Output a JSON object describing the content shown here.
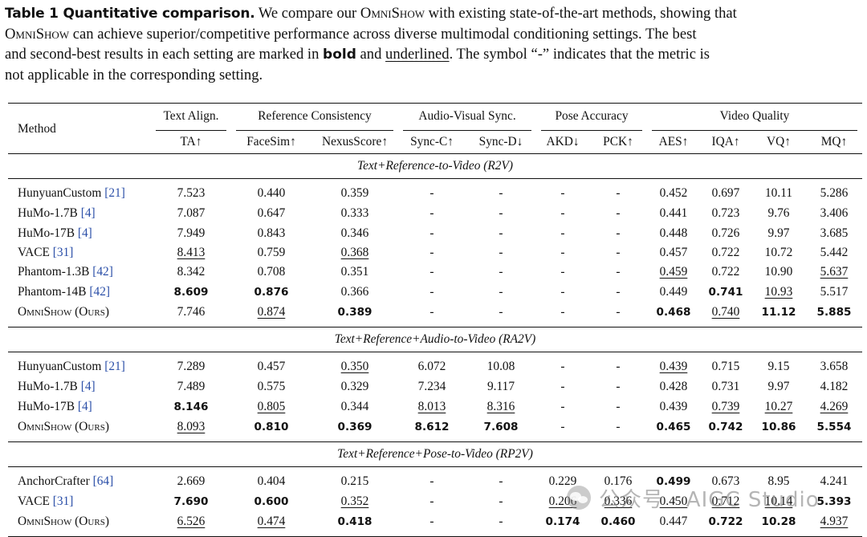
{
  "caption": {
    "label": "Table 1  Quantitative comparison.",
    "line1_a": " We compare our ",
    "model_name": "OmniShow",
    "line1_b": " with existing state-of-the-art methods, showing that",
    "line2_b": " can achieve superior/competitive performance across diverse multimodal conditioning settings. The best",
    "line3_a": "and second-best results in each setting are marked in ",
    "bold_word": "bold",
    "line3_b": " and ",
    "underline_word": "underlined",
    "line3_c": ". The symbol “-” indicates that the metric is",
    "line4": "not applicable in the corresponding setting."
  },
  "table": {
    "method_header": "Method",
    "groups": [
      {
        "label": "Text Align."
      },
      {
        "label": "Reference Consistency"
      },
      {
        "label": "Audio-Visual Sync."
      },
      {
        "label": "Pose Accuracy"
      },
      {
        "label": "Video Quality"
      }
    ],
    "metrics": [
      "TA↑",
      "FaceSim↑",
      "NexusScore↑",
      "Sync-C↑",
      "Sync-D↓",
      "AKD↓",
      "PCK↑",
      "AES↑",
      "IQA↑",
      "VQ↑",
      "MQ↑"
    ],
    "sections": [
      {
        "title": "Text+Reference-to-Video (R2V)",
        "rows": [
          {
            "method": "HunyuanCustom",
            "cite": "[21]",
            "values": [
              "7.523",
              "0.440",
              "0.359",
              "-",
              "-",
              "-",
              "-",
              "0.452",
              "0.697",
              "10.11",
              "5.286"
            ],
            "bold": [],
            "underline": []
          },
          {
            "method": "HuMo-1.7B",
            "cite": "[4]",
            "values": [
              "7.087",
              "0.647",
              "0.333",
              "-",
              "-",
              "-",
              "-",
              "0.441",
              "0.723",
              "9.76",
              "3.406"
            ],
            "bold": [],
            "underline": []
          },
          {
            "method": "HuMo-17B",
            "cite": "[4]",
            "values": [
              "7.949",
              "0.843",
              "0.346",
              "-",
              "-",
              "-",
              "-",
              "0.448",
              "0.726",
              "9.97",
              "3.685"
            ],
            "bold": [],
            "underline": []
          },
          {
            "method": "VACE",
            "cite": "[31]",
            "values": [
              "8.413",
              "0.759",
              "0.368",
              "-",
              "-",
              "-",
              "-",
              "0.457",
              "0.722",
              "10.72",
              "5.442"
            ],
            "bold": [],
            "underline": [
              0,
              2
            ]
          },
          {
            "method": "Phantom-1.3B",
            "cite": "[42]",
            "values": [
              "8.342",
              "0.708",
              "0.351",
              "-",
              "-",
              "-",
              "-",
              "0.459",
              "0.722",
              "10.90",
              "5.637"
            ],
            "bold": [],
            "underline": [
              7,
              10
            ]
          },
          {
            "method": "Phantom-14B",
            "cite": "[42]",
            "values": [
              "8.609",
              "0.876",
              "0.366",
              "-",
              "-",
              "-",
              "-",
              "0.449",
              "0.741",
              "10.93",
              "5.517"
            ],
            "bold": [
              0,
              1,
              8
            ],
            "underline": [
              9
            ]
          },
          {
            "method": "OmniShow (Ours)",
            "cite": "",
            "values": [
              "7.746",
              "0.874",
              "0.389",
              "-",
              "-",
              "-",
              "-",
              "0.468",
              "0.740",
              "11.12",
              "5.885"
            ],
            "bold": [
              2,
              7,
              9,
              10
            ],
            "underline": [
              1,
              8
            ]
          }
        ]
      },
      {
        "title": "Text+Reference+Audio-to-Video (RA2V)",
        "rows": [
          {
            "method": "HunyuanCustom",
            "cite": "[21]",
            "values": [
              "7.289",
              "0.457",
              "0.350",
              "6.072",
              "10.08",
              "-",
              "-",
              "0.439",
              "0.715",
              "9.15",
              "3.658"
            ],
            "bold": [],
            "underline": [
              2,
              7
            ]
          },
          {
            "method": "HuMo-1.7B",
            "cite": "[4]",
            "values": [
              "7.489",
              "0.575",
              "0.329",
              "7.234",
              "9.117",
              "-",
              "-",
              "0.428",
              "0.731",
              "9.97",
              "4.182"
            ],
            "bold": [],
            "underline": []
          },
          {
            "method": "HuMo-17B",
            "cite": "[4]",
            "values": [
              "8.146",
              "0.805",
              "0.344",
              "8.013",
              "8.316",
              "-",
              "-",
              "0.439",
              "0.739",
              "10.27",
              "4.269"
            ],
            "bold": [
              0
            ],
            "underline": [
              1,
              3,
              4,
              8,
              9,
              10
            ]
          },
          {
            "method": "OmniShow (Ours)",
            "cite": "",
            "values": [
              "8.093",
              "0.810",
              "0.369",
              "8.612",
              "7.608",
              "-",
              "-",
              "0.465",
              "0.742",
              "10.86",
              "5.554"
            ],
            "bold": [
              1,
              2,
              3,
              4,
              7,
              8,
              9,
              10
            ],
            "underline": [
              0
            ]
          }
        ]
      },
      {
        "title": "Text+Reference+Pose-to-Video (RP2V)",
        "rows": [
          {
            "method": "AnchorCrafter",
            "cite": "[64]",
            "values": [
              "2.669",
              "0.404",
              "0.215",
              "-",
              "-",
              "0.229",
              "0.176",
              "0.499",
              "0.673",
              "8.95",
              "4.241"
            ],
            "bold": [
              7
            ],
            "underline": []
          },
          {
            "method": "VACE",
            "cite": "[31]",
            "values": [
              "7.690",
              "0.600",
              "0.352",
              "-",
              "-",
              "0.206",
              "0.336",
              "0.450",
              "0.712",
              "10.14",
              "5.393"
            ],
            "bold": [
              0,
              1,
              10
            ],
            "underline": [
              2,
              5,
              6,
              7,
              8,
              9
            ]
          },
          {
            "method": "OmniShow (Ours)",
            "cite": "",
            "values": [
              "6.526",
              "0.474",
              "0.418",
              "-",
              "-",
              "0.174",
              "0.460",
              "0.447",
              "0.722",
              "10.28",
              "4.937"
            ],
            "bold": [
              2,
              5,
              6,
              8,
              9
            ],
            "underline": [
              0,
              1,
              10
            ]
          }
        ]
      }
    ]
  },
  "watermark": {
    "text": "公众号 · AIGC Studio"
  }
}
